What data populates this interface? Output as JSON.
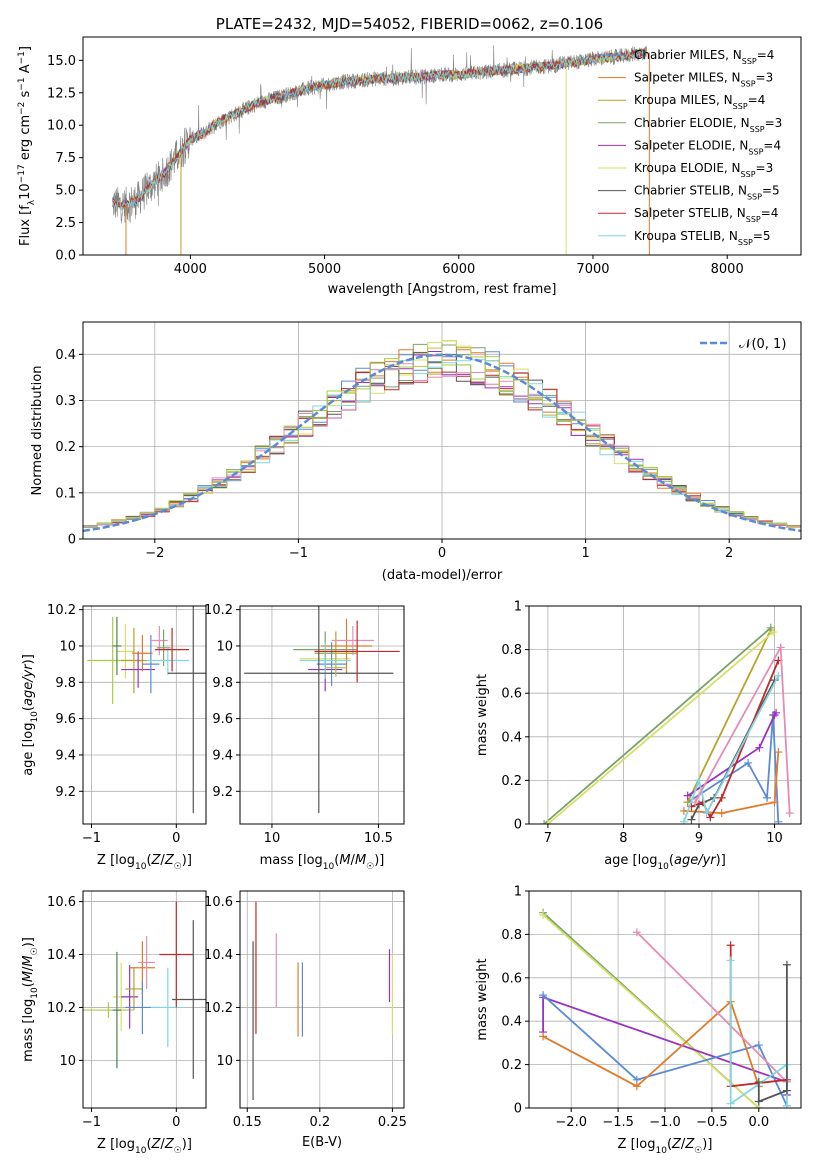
{
  "figure_title": "PLATE=2432, MJD=54052, FIBERID=0062, z=0.106",
  "colors": {
    "spec_gray": "#808080",
    "c": [
      "#5b8bd6",
      "#e07b2b",
      "#b8a32a",
      "#7aa36c",
      "#9932c0",
      "#d6e066",
      "#555555",
      "#c2282a",
      "#7fd7e0",
      "#e58cb5",
      "#4f7f4f",
      "#aacc44"
    ]
  },
  "chart_data": [
    {
      "id": "spectrum",
      "type": "line",
      "title": "PLATE=2432, MJD=54052, FIBERID=0062, z=0.106",
      "xlabel": "wavelength [Angstrom, rest frame]",
      "ylabel_parts": [
        "Flux [f",
        "λ",
        "10",
        "−17",
        " erg cm",
        "−2",
        " s",
        "−1",
        " A",
        "−1",
        "]"
      ],
      "xlim": [
        3200,
        8550
      ],
      "ylim": [
        0,
        16.8
      ],
      "xticks": [
        4000,
        5000,
        6000,
        7000,
        8000
      ],
      "yticks": [
        0.0,
        2.5,
        5.0,
        7.5,
        10.0,
        12.5,
        15.0
      ],
      "grid": false,
      "legend_position": "top-right",
      "continuum": {
        "x": [
          3420,
          3500,
          3600,
          3700,
          3800,
          3900,
          4000,
          4100,
          4200,
          4300,
          4400,
          4500,
          4600,
          4700,
          4800,
          4900,
          5000,
          5100,
          5200,
          5300,
          5400,
          5500,
          5600,
          5700,
          5800,
          5900,
          6000,
          6100,
          6200,
          6300,
          6400,
          6500,
          6600,
          6700,
          6800,
          6900,
          7000,
          7100,
          7200,
          7300,
          7400
        ],
        "y": [
          4.0,
          3.8,
          4.2,
          5.3,
          6.2,
          7.6,
          8.9,
          9.4,
          10.2,
          10.7,
          11.2,
          11.7,
          12.0,
          12.3,
          12.6,
          12.9,
          13.1,
          13.3,
          13.4,
          13.5,
          13.6,
          13.6,
          13.7,
          13.7,
          13.8,
          13.9,
          13.9,
          14.0,
          14.1,
          14.2,
          14.3,
          14.4,
          14.5,
          14.6,
          14.8,
          14.9,
          15.1,
          15.2,
          15.3,
          15.5,
          15.6
        ]
      },
      "series": [
        {
          "label": "Chabrier MILES, N",
          "sub": "SSP",
          "eq": "=4"
        },
        {
          "label": "Salpeter MILES, N",
          "sub": "SSP",
          "eq": "=3"
        },
        {
          "label": "Kroupa MILES, N",
          "sub": "SSP",
          "eq": "=4"
        },
        {
          "label": "Chabrier ELODIE, N",
          "sub": "SSP",
          "eq": "=3"
        },
        {
          "label": "Salpeter ELODIE, N",
          "sub": "SSP",
          "eq": "=4"
        },
        {
          "label": "Kroupa ELODIE, N",
          "sub": "SSP",
          "eq": "=3"
        },
        {
          "label": "Chabrier STELIB, N",
          "sub": "SSP",
          "eq": "=5"
        },
        {
          "label": "Salpeter STELIB, N",
          "sub": "SSP",
          "eq": "=4"
        },
        {
          "label": "Kroupa STELIB, N",
          "sub": "SSP",
          "eq": "=5"
        }
      ]
    },
    {
      "id": "residuals",
      "type": "line",
      "xlabel": "(data-model)/error",
      "ylabel": "Normed distribution",
      "xlim": [
        -2.5,
        2.5
      ],
      "ylim": [
        0,
        0.47
      ],
      "xticks": [
        -2,
        -1,
        0,
        1,
        2
      ],
      "xtick_labels": [
        "−2",
        "−1",
        "0",
        "1",
        "2"
      ],
      "yticks": [
        0.0,
        0.1,
        0.2,
        0.3,
        0.4
      ],
      "grid": true,
      "legend_position": "top-right",
      "legend_label": "𝒩(0, 1)",
      "gaussian": {
        "mean": 0,
        "sigma": 1
      }
    },
    {
      "id": "age_vs_Z",
      "type": "errorbar",
      "xlabel": "Z [log10(Z/Z☉)]",
      "ylabel": "age [log10(age/yr)]",
      "xlim": [
        -1.1,
        0.35
      ],
      "ylim": [
        9.02,
        10.22
      ],
      "xticks": [
        -1,
        0
      ],
      "xtick_labels": [
        "−1",
        "0"
      ],
      "yticks": [
        9.2,
        9.4,
        9.6,
        9.8,
        10.0,
        10.2
      ],
      "grid": true,
      "points": [
        {
          "x": -0.75,
          "y": 9.92,
          "xerr": 0.3,
          "yerr": 0.24,
          "c": 11
        },
        {
          "x": -0.6,
          "y": 9.97,
          "xerr": 0.1,
          "yerr": 0.15,
          "c": 5
        },
        {
          "x": -0.5,
          "y": 9.92,
          "xerr": 0.15,
          "yerr": 0.18,
          "c": 2
        },
        {
          "x": -0.45,
          "y": 9.87,
          "xerr": 0.2,
          "yerr": 0.1,
          "c": 4
        },
        {
          "x": -0.4,
          "y": 9.96,
          "xerr": 0.12,
          "yerr": 0.1,
          "c": 1
        },
        {
          "x": -0.3,
          "y": 9.9,
          "xerr": 0.1,
          "yerr": 0.16,
          "c": 0
        },
        {
          "x": -0.2,
          "y": 10.03,
          "xerr": 0.1,
          "yerr": 0.08,
          "c": 9
        },
        {
          "x": -0.15,
          "y": 9.99,
          "xerr": 0.08,
          "yerr": 0.1,
          "c": 3
        },
        {
          "x": -0.1,
          "y": 9.92,
          "xerr": 0.25,
          "yerr": 0.08,
          "c": 8
        },
        {
          "x": -0.05,
          "y": 9.98,
          "xerr": 0.2,
          "yerr": 0.12,
          "c": 7
        },
        {
          "x": 0.2,
          "y": 9.85,
          "xerr": 0.3,
          "yerr": 0.77,
          "c": 6
        },
        {
          "x": -0.7,
          "y": 10.0,
          "xerr": 0.05,
          "yerr": 0.16,
          "c": 10
        }
      ]
    },
    {
      "id": "age_vs_mass",
      "type": "errorbar",
      "xlabel": "mass [log10(M/M☉)]",
      "ylabel": "",
      "xlim": [
        9.85,
        10.62
      ],
      "ylim": [
        9.02,
        10.22
      ],
      "xticks": [
        10.0,
        10.5
      ],
      "yticks": [
        9.2,
        9.4,
        9.6,
        9.8,
        10.0,
        10.2
      ],
      "grid": true,
      "points": [
        {
          "x": 10.25,
          "y": 9.93,
          "xerr": 0.12,
          "yerr": 0.1,
          "c": 5
        },
        {
          "x": 10.3,
          "y": 9.96,
          "xerr": 0.1,
          "yerr": 0.12,
          "c": 2
        },
        {
          "x": 10.25,
          "y": 9.87,
          "xerr": 0.08,
          "yerr": 0.12,
          "c": 4
        },
        {
          "x": 10.35,
          "y": 10.0,
          "xerr": 0.12,
          "yerr": 0.15,
          "c": 1
        },
        {
          "x": 10.28,
          "y": 9.9,
          "xerr": 0.07,
          "yerr": 0.12,
          "c": 0
        },
        {
          "x": 10.38,
          "y": 10.03,
          "xerr": 0.1,
          "yerr": 0.08,
          "c": 9
        },
        {
          "x": 10.25,
          "y": 9.98,
          "xerr": 0.15,
          "yerr": 0.1,
          "c": 3
        },
        {
          "x": 10.25,
          "y": 9.92,
          "xerr": 0.12,
          "yerr": 0.1,
          "c": 8
        },
        {
          "x": 10.4,
          "y": 9.97,
          "xerr": 0.2,
          "yerr": 0.17,
          "c": 7
        },
        {
          "x": 10.22,
          "y": 9.85,
          "xerr": 0.35,
          "yerr": 0.77,
          "c": 6
        },
        {
          "x": 10.3,
          "y": 9.88,
          "xerr": 0.05,
          "yerr": 0.05,
          "c": 11
        }
      ]
    },
    {
      "id": "weight_vs_age",
      "type": "line",
      "xlabel": "age [log10(age/yr)]",
      "ylabel": "mass weight",
      "xlim": [
        6.75,
        10.35
      ],
      "ylim": [
        0,
        1.0
      ],
      "xticks": [
        7,
        8,
        9,
        10
      ],
      "yticks": [
        0.0,
        0.2,
        0.4,
        0.6,
        0.8,
        1.0
      ],
      "grid": true,
      "series": [
        {
          "c": 0,
          "x": [
            8.85,
            9.65,
            9.9,
            9.98,
            10.05
          ],
          "y": [
            0.1,
            0.28,
            0.12,
            0.5,
            0.01
          ]
        },
        {
          "c": 1,
          "x": [
            8.8,
            9.3,
            10.0,
            10.05
          ],
          "y": [
            0.06,
            0.05,
            0.1,
            0.33
          ]
        },
        {
          "c": 2,
          "x": [
            8.85,
            9.95
          ],
          "y": [
            0.1,
            0.89
          ]
        },
        {
          "c": 3,
          "x": [
            6.95,
            9.95
          ],
          "y": [
            0.0,
            0.9
          ]
        },
        {
          "c": 4,
          "x": [
            8.85,
            9.8,
            10.0,
            10.02
          ],
          "y": [
            0.13,
            0.35,
            0.5,
            0.51
          ]
        },
        {
          "c": 5,
          "x": [
            7.0,
            9.98
          ],
          "y": [
            0.0,
            0.88
          ]
        },
        {
          "c": 6,
          "x": [
            8.9,
            9.0,
            9.2,
            10.0
          ],
          "y": [
            0.02,
            0.09,
            0.12,
            0.66
          ]
        },
        {
          "c": 7,
          "x": [
            8.9,
            9.05,
            9.15,
            9.3,
            10.05
          ],
          "y": [
            0.08,
            0.1,
            0.03,
            0.12,
            0.75
          ]
        },
        {
          "c": 8,
          "x": [
            8.8,
            9.0,
            9.1,
            10.05
          ],
          "y": [
            0.01,
            0.2,
            0.05,
            0.68
          ]
        },
        {
          "c": 9,
          "x": [
            8.95,
            10.08,
            10.2
          ],
          "y": [
            0.1,
            0.81,
            0.05
          ]
        }
      ]
    },
    {
      "id": "mass_vs_Z",
      "type": "errorbar",
      "xlabel": "Z [log10(Z/Z☉)]",
      "ylabel": "mass [log10(M/M☉)]",
      "xlim": [
        -1.1,
        0.35
      ],
      "ylim": [
        9.82,
        10.64
      ],
      "xticks": [
        -1,
        0
      ],
      "xtick_labels": [
        "−1",
        "0"
      ],
      "yticks": [
        10.0,
        10.2,
        10.4,
        10.6
      ],
      "grid": true,
      "points": [
        {
          "x": -0.8,
          "y": 10.19,
          "xerr": 0.3,
          "yerr": 0.03,
          "c": 11
        },
        {
          "x": -0.65,
          "y": 10.24,
          "xerr": 0.1,
          "yerr": 0.13,
          "c": 5
        },
        {
          "x": -0.55,
          "y": 10.24,
          "xerr": 0.1,
          "yerr": 0.12,
          "c": 4
        },
        {
          "x": -0.5,
          "y": 10.27,
          "xerr": 0.1,
          "yerr": 0.08,
          "c": 2
        },
        {
          "x": -0.4,
          "y": 10.35,
          "xerr": 0.15,
          "yerr": 0.1,
          "c": 1
        },
        {
          "x": -0.4,
          "y": 10.2,
          "xerr": 0.2,
          "yerr": 0.1,
          "c": 0
        },
        {
          "x": -0.35,
          "y": 10.37,
          "xerr": 0.1,
          "yerr": 0.1,
          "c": 9
        },
        {
          "x": -0.1,
          "y": 10.2,
          "xerr": 0.2,
          "yerr": 0.15,
          "c": 8
        },
        {
          "x": 0.0,
          "y": 10.4,
          "xerr": 0.2,
          "yerr": 0.2,
          "c": 7
        },
        {
          "x": 0.2,
          "y": 10.23,
          "xerr": 0.25,
          "yerr": 0.3,
          "c": 6
        },
        {
          "x": -0.7,
          "y": 10.19,
          "xerr": 0.05,
          "yerr": 0.22,
          "c": 10
        }
      ]
    },
    {
      "id": "mass_vs_ebv",
      "type": "errorbar",
      "xlabel": "E(B-V)",
      "ylabel": "",
      "xlim": [
        0.145,
        0.258
      ],
      "ylim": [
        9.82,
        10.64
      ],
      "xticks": [
        0.15,
        0.2,
        0.25
      ],
      "yticks": [
        10.0,
        10.2,
        10.4,
        10.6
      ],
      "grid": true,
      "points": [
        {
          "x": 0.154,
          "y": 10.15,
          "xerr": 0,
          "yerr": 0.3,
          "c": 6
        },
        {
          "x": 0.156,
          "y": 10.35,
          "xerr": 0,
          "yerr": 0.25,
          "c": 7
        },
        {
          "x": 0.17,
          "y": 10.34,
          "xerr": 0,
          "yerr": 0.14,
          "c": 9
        },
        {
          "x": 0.185,
          "y": 10.23,
          "xerr": 0,
          "yerr": 0.14,
          "c": 1
        },
        {
          "x": 0.188,
          "y": 10.23,
          "xerr": 0,
          "yerr": 0.14,
          "c": 0
        },
        {
          "x": 0.248,
          "y": 10.32,
          "xerr": 0,
          "yerr": 0.1,
          "c": 4
        },
        {
          "x": 0.25,
          "y": 10.25,
          "xerr": 0,
          "yerr": 0.15,
          "c": 5
        }
      ]
    },
    {
      "id": "weight_vs_Z",
      "type": "line",
      "xlabel": "Z [log10(Z/Z☉)]",
      "ylabel": "mass weight",
      "xlim": [
        -2.45,
        0.45
      ],
      "ylim": [
        0,
        1.0
      ],
      "xticks": [
        -2.0,
        -1.5,
        -1.0,
        -0.5,
        0.0
      ],
      "xtick_labels": [
        "−2.0",
        "−1.5",
        "−1.0",
        "−0.5",
        "0.0"
      ],
      "yticks": [
        0.0,
        0.2,
        0.4,
        0.6,
        0.8,
        1.0
      ],
      "grid": true,
      "series": [
        {
          "c": 3,
          "x": [
            -2.3,
            0.0
          ],
          "y": [
            0.9,
            0.0
          ]
        },
        {
          "c": 5,
          "x": [
            -2.3,
            0.0
          ],
          "y": [
            0.89,
            0.0
          ]
        },
        {
          "c": 4,
          "x": [
            -2.3,
            -2.3,
            0.3,
            0.3
          ],
          "y": [
            0.35,
            0.51,
            0.12,
            0.06
          ]
        },
        {
          "c": 0,
          "x": [
            -2.3,
            -1.3,
            0.0,
            0.3
          ],
          "y": [
            0.52,
            0.13,
            0.29,
            0.01
          ]
        },
        {
          "c": 1,
          "x": [
            -2.3,
            -1.3,
            -0.3,
            0.0
          ],
          "y": [
            0.33,
            0.1,
            0.49,
            0.1
          ]
        },
        {
          "c": 9,
          "x": [
            -1.3,
            0.3
          ],
          "y": [
            0.81,
            0.12
          ]
        },
        {
          "c": 7,
          "x": [
            -0.3,
            -0.3,
            0.3
          ],
          "y": [
            0.75,
            0.1,
            0.13
          ]
        },
        {
          "c": 8,
          "x": [
            -0.3,
            -0.3,
            0.3,
            0.3
          ],
          "y": [
            0.68,
            0.02,
            0.2,
            0.01
          ]
        },
        {
          "c": 6,
          "x": [
            0.0,
            0.0,
            0.3,
            0.3
          ],
          "y": [
            0.12,
            0.03,
            0.08,
            0.66
          ]
        }
      ]
    }
  ]
}
